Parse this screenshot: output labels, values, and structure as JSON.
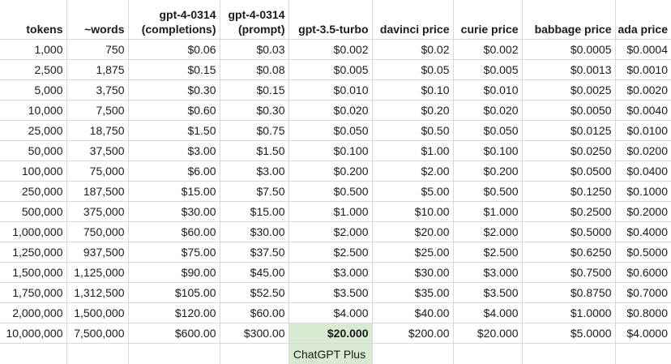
{
  "columns": [
    [
      "tokens"
    ],
    [
      "~words"
    ],
    [
      "gpt-4-0314",
      "(completions)"
    ],
    [
      "gpt-4-0314",
      "(prompt)"
    ],
    [
      "gpt-3.5-turbo"
    ],
    [
      "davinci price"
    ],
    [
      "curie price"
    ],
    [
      "babbage price"
    ],
    [
      "ada price"
    ]
  ],
  "rows": [
    [
      "1,000",
      "750",
      "$0.06",
      "$0.03",
      "$0.002",
      "$0.02",
      "$0.002",
      "$0.0005",
      "$0.0004"
    ],
    [
      "2,500",
      "1,875",
      "$0.15",
      "$0.08",
      "$0.005",
      "$0.05",
      "$0.005",
      "$0.0013",
      "$0.0010"
    ],
    [
      "5,000",
      "3,750",
      "$0.30",
      "$0.15",
      "$0.010",
      "$0.10",
      "$0.010",
      "$0.0025",
      "$0.0020"
    ],
    [
      "10,000",
      "7,500",
      "$0.60",
      "$0.30",
      "$0.020",
      "$0.20",
      "$0.020",
      "$0.0050",
      "$0.0040"
    ],
    [
      "25,000",
      "18,750",
      "$1.50",
      "$0.75",
      "$0.050",
      "$0.50",
      "$0.050",
      "$0.0125",
      "$0.0100"
    ],
    [
      "50,000",
      "37,500",
      "$3.00",
      "$1.50",
      "$0.100",
      "$1.00",
      "$0.100",
      "$0.0250",
      "$0.0200"
    ],
    [
      "100,000",
      "75,000",
      "$6.00",
      "$3.00",
      "$0.200",
      "$2.00",
      "$0.200",
      "$0.0500",
      "$0.0400"
    ],
    [
      "250,000",
      "187,500",
      "$15.00",
      "$7.50",
      "$0.500",
      "$5.00",
      "$0.500",
      "$0.1250",
      "$0.1000"
    ],
    [
      "500,000",
      "375,000",
      "$30.00",
      "$15.00",
      "$1.000",
      "$10.00",
      "$1.000",
      "$0.2500",
      "$0.2000"
    ],
    [
      "1,000,000",
      "750,000",
      "$60.00",
      "$30.00",
      "$2.000",
      "$20.00",
      "$2.000",
      "$0.5000",
      "$0.4000"
    ],
    [
      "1,250,000",
      "937,500",
      "$75.00",
      "$37.50",
      "$2.500",
      "$25.00",
      "$2.500",
      "$0.6250",
      "$0.5000"
    ],
    [
      "1,500,000",
      "1,125,000",
      "$90.00",
      "$45.00",
      "$3.000",
      "$30.00",
      "$3.000",
      "$0.7500",
      "$0.6000"
    ],
    [
      "1,750,000",
      "1,312,500",
      "$105.00",
      "$52.50",
      "$3.500",
      "$35.00",
      "$3.500",
      "$0.8750",
      "$0.7000"
    ],
    [
      "2,000,000",
      "1,500,000",
      "$120.00",
      "$60.00",
      "$4.000",
      "$40.00",
      "$4.000",
      "$1.0000",
      "$0.8000"
    ],
    [
      "10,000,000",
      "7,500,000",
      "$600.00",
      "$300.00",
      "$20.000",
      "$200.00",
      "$20.000",
      "$5.0000",
      "$4.0000"
    ]
  ],
  "footer_note": "ChatGPT Plus",
  "highlight": {
    "column_index": 4,
    "color": "#d9ead3"
  }
}
